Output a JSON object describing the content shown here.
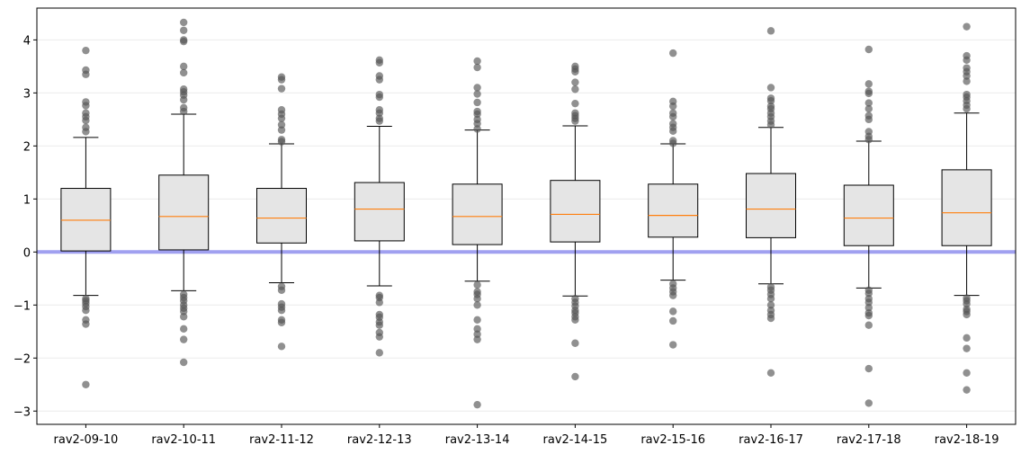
{
  "chart_data": {
    "type": "box",
    "title": "",
    "xlabel": "",
    "ylabel": "",
    "ylim": [
      -3.25,
      4.6
    ],
    "yticks": [
      -3,
      -2,
      -1,
      0,
      1,
      2,
      3,
      4
    ],
    "ytick_labels": [
      "−3",
      "−2",
      "−1",
      "0",
      "1",
      "2",
      "3",
      "4"
    ],
    "grid": "horizontal",
    "reference_line": {
      "y": 0,
      "color": "#a0a0f0"
    },
    "colors": {
      "box_fill": "#e5e5e5",
      "median": "#ff7f0e",
      "outlier": "#555555",
      "grid": "#ebebeb"
    },
    "categories": [
      "rav2-09-10",
      "rav2-10-11",
      "rav2-11-12",
      "rav2-12-13",
      "rav2-13-14",
      "rav2-14-15",
      "rav2-15-16",
      "rav2-16-17",
      "rav2-17-18",
      "rav2-18-19"
    ],
    "boxes": [
      {
        "whislo": -0.82,
        "q1": 0.02,
        "med": 0.6,
        "q3": 1.2,
        "whishi": 2.16,
        "fliers": [
          3.8,
          3.43,
          3.35,
          2.83,
          2.76,
          2.62,
          2.55,
          2.48,
          2.35,
          2.27,
          -0.88,
          -0.92,
          -0.97,
          -1.03,
          -1.1,
          -1.28,
          -1.36,
          -2.5
        ]
      },
      {
        "whislo": -0.73,
        "q1": 0.04,
        "med": 0.67,
        "q3": 1.45,
        "whishi": 2.6,
        "fliers": [
          4.33,
          4.18,
          4.0,
          3.97,
          3.5,
          3.38,
          3.07,
          3.02,
          2.96,
          2.87,
          2.72,
          2.65,
          -0.8,
          -0.86,
          -0.92,
          -1.0,
          -1.06,
          -1.12,
          -1.22,
          -1.45,
          -1.65,
          -2.08
        ]
      },
      {
        "whislo": -0.58,
        "q1": 0.17,
        "med": 0.64,
        "q3": 1.2,
        "whishi": 2.04,
        "fliers": [
          3.3,
          3.25,
          3.08,
          2.68,
          2.6,
          2.52,
          2.4,
          2.3,
          2.12,
          2.08,
          -0.65,
          -0.72,
          -0.98,
          -1.04,
          -1.1,
          -1.28,
          -1.33,
          -1.78
        ]
      },
      {
        "whislo": -0.64,
        "q1": 0.21,
        "med": 0.81,
        "q3": 1.31,
        "whishi": 2.37,
        "fliers": [
          3.62,
          3.57,
          3.32,
          3.25,
          2.97,
          2.92,
          2.68,
          2.62,
          2.52,
          2.47,
          -0.82,
          -0.86,
          -0.95,
          -1.18,
          -1.23,
          -1.32,
          -1.38,
          -1.52,
          -1.6,
          -1.9
        ]
      },
      {
        "whislo": -0.55,
        "q1": 0.14,
        "med": 0.67,
        "q3": 1.28,
        "whishi": 2.3,
        "fliers": [
          3.6,
          3.48,
          3.1,
          2.98,
          2.82,
          2.65,
          2.6,
          2.5,
          2.42,
          2.32,
          -0.62,
          -0.75,
          -0.8,
          -0.88,
          -1.0,
          -1.28,
          -1.45,
          -1.55,
          -1.65,
          -2.88
        ]
      },
      {
        "whislo": -0.83,
        "q1": 0.19,
        "med": 0.71,
        "q3": 1.35,
        "whishi": 2.38,
        "fliers": [
          3.5,
          3.45,
          3.4,
          3.2,
          3.07,
          2.8,
          2.62,
          2.57,
          2.52,
          2.47,
          -0.88,
          -0.95,
          -1.02,
          -1.1,
          -1.15,
          -1.22,
          -1.28,
          -1.72,
          -2.35
        ]
      },
      {
        "whislo": -0.53,
        "q1": 0.28,
        "med": 0.69,
        "q3": 1.28,
        "whishi": 2.04,
        "fliers": [
          3.75,
          2.84,
          2.75,
          2.62,
          2.55,
          2.42,
          2.35,
          2.28,
          2.1,
          2.05,
          -0.6,
          -0.68,
          -0.75,
          -0.82,
          -1.12,
          -1.3,
          -1.75
        ]
      },
      {
        "whislo": -0.6,
        "q1": 0.27,
        "med": 0.81,
        "q3": 1.48,
        "whishi": 2.35,
        "fliers": [
          4.17,
          3.1,
          2.9,
          2.85,
          2.75,
          2.7,
          2.62,
          2.55,
          2.47,
          2.4,
          -0.66,
          -0.72,
          -0.8,
          -0.88,
          -1.0,
          -1.1,
          -1.18,
          -1.25,
          -2.28
        ]
      },
      {
        "whislo": -0.68,
        "q1": 0.12,
        "med": 0.64,
        "q3": 1.26,
        "whishi": 2.09,
        "fliers": [
          3.82,
          3.17,
          3.03,
          2.99,
          2.81,
          2.7,
          2.57,
          2.5,
          2.27,
          2.18,
          2.12,
          -0.72,
          -0.78,
          -0.88,
          -0.95,
          -1.05,
          -1.15,
          -1.2,
          -1.38,
          -2.2,
          -2.85
        ]
      },
      {
        "whislo": -0.82,
        "q1": 0.12,
        "med": 0.74,
        "q3": 1.55,
        "whishi": 2.62,
        "fliers": [
          4.25,
          3.7,
          3.62,
          3.47,
          3.4,
          3.32,
          3.22,
          2.97,
          2.92,
          2.85,
          2.77,
          2.7,
          -0.87,
          -0.92,
          -0.98,
          -1.08,
          -1.12,
          -1.18,
          -1.62,
          -1.82,
          -2.28,
          -2.6
        ]
      }
    ]
  }
}
